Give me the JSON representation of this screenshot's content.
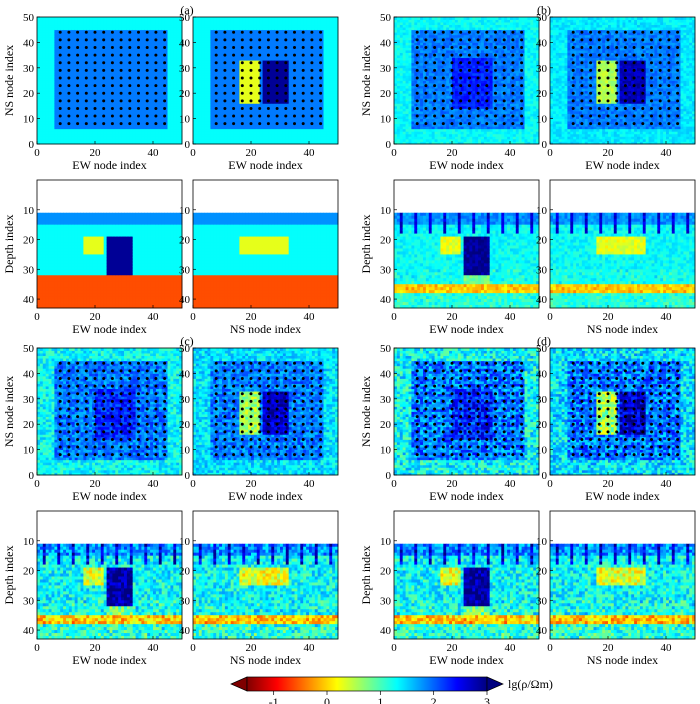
{
  "panel_labels": [
    "(a)",
    "(b)",
    "(c)",
    "(d)"
  ],
  "axis_labels": {
    "ew": "EW node index",
    "ns": "NS node index",
    "ns_y": "NS node index",
    "depth_y": "Depth index"
  },
  "colorbar": {
    "label": "lg(ρ/Ωm)",
    "ticks": [
      "-1",
      "0",
      "1",
      "2",
      "3"
    ],
    "range": [
      -1.5,
      3
    ],
    "colors": [
      "#7f0000",
      "#ff0000",
      "#ff8000",
      "#ffff00",
      "#80ff80",
      "#00ffff",
      "#0080ff",
      "#0000ff",
      "#00007f"
    ]
  },
  "chart_data": {
    "type": "heatmap",
    "plan_view": {
      "x_range": [
        0,
        50
      ],
      "y_range": [
        0,
        50
      ],
      "x_ticks": [
        "0",
        "20",
        "40"
      ],
      "y_ticks": [
        "0",
        "10",
        "20",
        "30",
        "40",
        "50"
      ],
      "background_log_rho": 1.3,
      "survey_area_log_rho": 1.9,
      "survey_area_bounds": {
        "x": [
          6,
          45
        ],
        "y": [
          6,
          45
        ]
      }
    },
    "section_view": {
      "x_range": [
        0,
        50
      ],
      "depth_range": [
        0,
        43
      ],
      "x_ticks": [
        "0",
        "20",
        "40"
      ],
      "depth_ticks": [
        "10",
        "20",
        "30",
        "40"
      ],
      "top_depth": 11
    },
    "true_model": {
      "conductor_log_rho": 0.3,
      "conductor_bounds": {
        "x": [
          16,
          23
        ],
        "y": [
          16,
          33
        ],
        "depth": [
          19,
          25
        ]
      },
      "resistor_log_rho": 2.9,
      "resistor_bounds": {
        "x": [
          24,
          33
        ],
        "y": [
          16,
          33
        ],
        "depth": [
          19,
          32
        ]
      },
      "layer_top_log_rho": 1.8,
      "layer_top_depth": [
        11,
        15
      ],
      "basement_log_rho": -0.6,
      "basement_depth": [
        32,
        43
      ]
    },
    "receivers": {
      "columns": [
        8,
        11,
        14,
        17,
        20,
        23,
        26,
        29,
        32,
        35,
        38,
        41,
        44
      ],
      "rows": [
        8,
        11,
        14,
        17,
        20,
        23,
        26,
        29,
        32,
        35,
        38,
        41,
        44
      ]
    }
  }
}
